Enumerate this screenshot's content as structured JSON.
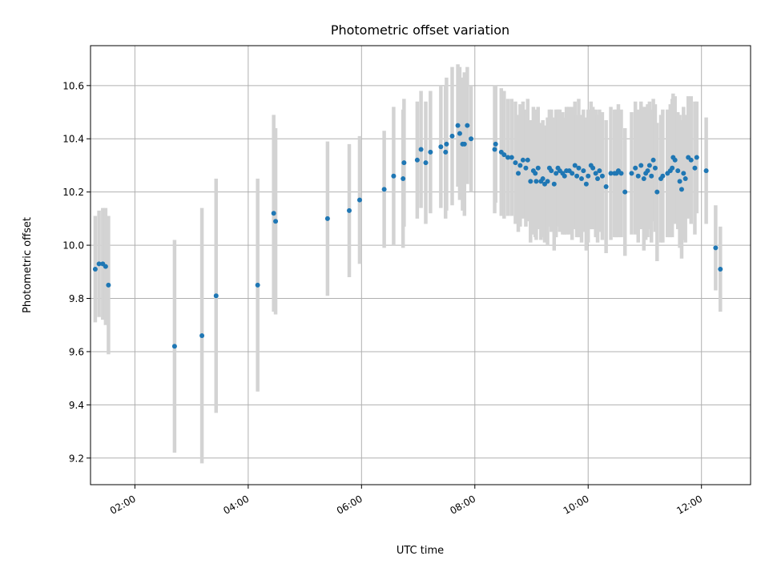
{
  "chart_data": {
    "type": "scatter",
    "title": "Photometric offset variation",
    "xlabel": "UTC time",
    "ylabel": "Photometric offset",
    "xlim": [
      "01:13",
      "12:52"
    ],
    "ylim": [
      9.1,
      10.75
    ],
    "xticks": [
      "02:00",
      "04:00",
      "06:00",
      "08:00",
      "10:00",
      "12:00"
    ],
    "yticks": [
      9.2,
      9.4,
      9.6,
      9.8,
      10.0,
      10.2,
      10.4,
      10.6
    ],
    "grid": true,
    "colors": {
      "points": "#1f77b4",
      "errorbars": "#d3d3d3",
      "grid": "#b0b0b0"
    },
    "series": [
      {
        "x": [
          "01:18",
          "01:22",
          "01:26",
          "01:29",
          "01:32",
          "02:42",
          "03:11",
          "03:26",
          "04:10",
          "04:27",
          "04:29",
          "05:24",
          "05:47",
          "05:58",
          "06:24",
          "06:34",
          "06:44",
          "06:45",
          "06:59",
          "07:03",
          "07:08",
          "07:13",
          "07:24",
          "07:29",
          "07:30",
          "07:36",
          "07:42",
          "07:44",
          "07:47",
          "07:49",
          "07:52",
          "07:56",
          "08:21",
          "08:22",
          "08:28",
          "08:31",
          "08:35",
          "08:39",
          "08:43",
          "08:46",
          "08:48",
          "08:51",
          "08:54",
          "08:56",
          "08:59",
          "09:02",
          "09:04",
          "09:05",
          "09:07",
          "09:10",
          "09:12",
          "09:14",
          "09:17",
          "09:19",
          "09:21",
          "09:24",
          "09:26",
          "09:28",
          "09:30",
          "09:33",
          "09:35",
          "09:37",
          "09:40",
          "09:43",
          "09:46",
          "09:48",
          "09:50",
          "09:53",
          "09:55",
          "09:58",
          "10:00",
          "10:03",
          "10:05",
          "10:08",
          "10:10",
          "10:12",
          "10:15",
          "10:19",
          "10:24",
          "10:28",
          "10:30",
          "10:32",
          "10:35",
          "10:39",
          "10:46",
          "10:50",
          "10:53",
          "10:56",
          "10:59",
          "11:01",
          "11:03",
          "11:05",
          "11:07",
          "11:09",
          "11:11",
          "11:13",
          "11:17",
          "11:19",
          "11:24",
          "11:27",
          "11:29",
          "11:30",
          "11:32",
          "11:35",
          "11:37",
          "11:39",
          "11:41",
          "11:43",
          "11:46",
          "11:49",
          "11:53",
          "11:55",
          "12:05",
          "12:15",
          "12:20"
        ],
        "y": [
          9.91,
          9.93,
          9.93,
          9.92,
          9.85,
          9.62,
          9.66,
          9.81,
          9.85,
          10.12,
          10.09,
          10.1,
          10.13,
          10.17,
          10.21,
          10.26,
          10.25,
          10.31,
          10.32,
          10.36,
          10.31,
          10.35,
          10.37,
          10.35,
          10.38,
          10.41,
          10.45,
          10.42,
          10.38,
          10.38,
          10.45,
          10.4,
          10.36,
          10.38,
          10.35,
          10.34,
          10.33,
          10.33,
          10.31,
          10.27,
          10.3,
          10.32,
          10.29,
          10.32,
          10.24,
          10.28,
          10.27,
          10.24,
          10.29,
          10.24,
          10.25,
          10.23,
          10.24,
          10.29,
          10.28,
          10.23,
          10.27,
          10.29,
          10.28,
          10.27,
          10.26,
          10.28,
          10.28,
          10.27,
          10.3,
          10.26,
          10.29,
          10.25,
          10.28,
          10.23,
          10.26,
          10.3,
          10.29,
          10.27,
          10.25,
          10.28,
          10.26,
          10.22,
          10.27,
          10.27,
          10.27,
          10.28,
          10.27,
          10.2,
          10.27,
          10.29,
          10.26,
          10.3,
          10.25,
          10.27,
          10.28,
          10.3,
          10.26,
          10.32,
          10.29,
          10.2,
          10.25,
          10.26,
          10.27,
          10.28,
          10.29,
          10.33,
          10.32,
          10.28,
          10.24,
          10.21,
          10.27,
          10.25,
          10.33,
          10.32,
          10.29,
          10.33,
          10.28,
          9.99,
          9.91
        ],
        "err": [
          0.2,
          0.2,
          0.21,
          0.22,
          0.26,
          0.4,
          0.48,
          0.44,
          0.4,
          0.37,
          0.35,
          0.29,
          0.25,
          0.24,
          0.22,
          0.26,
          0.26,
          0.24,
          0.22,
          0.22,
          0.23,
          0.23,
          0.23,
          0.25,
          0.25,
          0.26,
          0.23,
          0.25,
          0.25,
          0.27,
          0.22,
          0.2,
          0.24,
          0.22,
          0.24,
          0.24,
          0.22,
          0.22,
          0.23,
          0.22,
          0.23,
          0.22,
          0.22,
          0.23,
          0.23,
          0.24,
          0.24,
          0.22,
          0.23,
          0.22,
          0.22,
          0.22,
          0.24,
          0.22,
          0.23,
          0.25,
          0.24,
          0.22,
          0.23,
          0.23,
          0.22,
          0.24,
          0.24,
          0.25,
          0.24,
          0.23,
          0.26,
          0.24,
          0.23,
          0.25,
          0.25,
          0.24,
          0.23,
          0.24,
          0.24,
          0.23,
          0.24,
          0.25,
          0.25,
          0.24,
          0.24,
          0.25,
          0.24,
          0.24,
          0.23,
          0.25,
          0.25,
          0.24,
          0.27,
          0.25,
          0.25,
          0.24,
          0.25,
          0.23,
          0.24,
          0.26,
          0.24,
          0.25,
          0.24,
          0.25,
          0.26,
          0.24,
          0.24,
          0.22,
          0.25,
          0.26,
          0.25,
          0.24,
          0.23,
          0.24,
          0.25,
          0.21,
          0.2,
          0.16,
          0.16
        ]
      }
    ]
  }
}
